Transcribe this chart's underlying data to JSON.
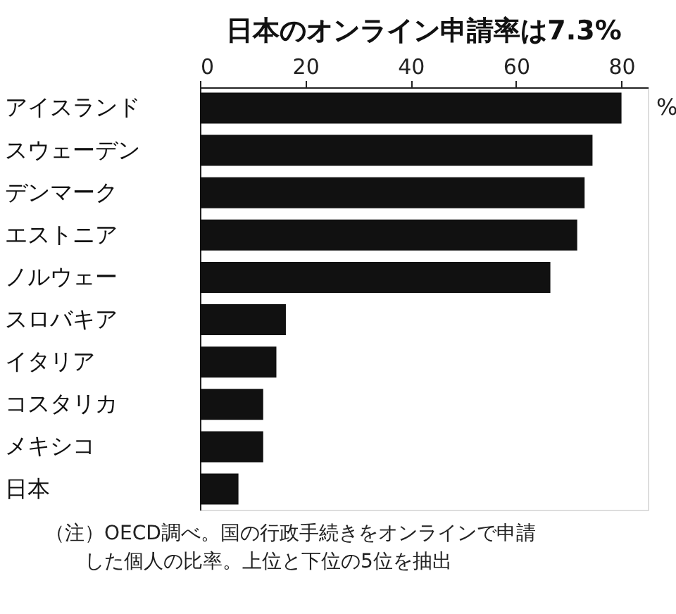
{
  "chart_data": {
    "type": "bar",
    "orientation": "horizontal",
    "title": "日本のオンライン申請率は7.3%",
    "categories": [
      "アイスランド",
      "スウェーデン",
      "デンマーク",
      "エストニア",
      "ノルウェー",
      "スロバキア",
      "イタリア",
      "コスタリカ",
      "メキシコ",
      "日本"
    ],
    "values": [
      80,
      74.5,
      73,
      71.6,
      66.5,
      16.3,
      14.5,
      12,
      12,
      7.3
    ],
    "color": "#111111",
    "xlim": [
      0,
      85
    ],
    "xticks": [
      0,
      20,
      40,
      60,
      80
    ],
    "grid": false,
    "annotations": [
      "%",
      "（注）OECD調べ。国の行政手続きをオンラインで申請した個人の比率。上位と下位の5位を抽出"
    ]
  }
}
